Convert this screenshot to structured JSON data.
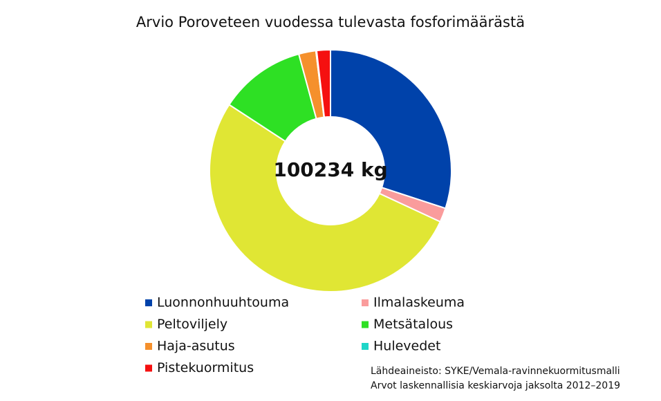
{
  "chart_data": {
    "type": "donut",
    "title": "Arvio Poroveteen vuodessa tulevasta fosforimäärästä",
    "center_label": "100234 kg",
    "categories": [
      "Luonnonhuuhtouma",
      "Ilmalaskeuma",
      "Peltoviljely",
      "Metsätalous",
      "Haja-asutus",
      "Hulevedet",
      "Pistekuormitus"
    ],
    "values": [
      30100,
      1900,
      52400,
      11600,
      2300,
      100,
      1834
    ],
    "colors": [
      "#0042aa",
      "#fa9c9c",
      "#e0e634",
      "#2ee024",
      "#f5902c",
      "#1ed6c8",
      "#f51010"
    ],
    "source_lines": [
      "Lähdeaineisto: SYKE/Vemala-ravinnekuormitusmalli",
      "Arvot laskennallisia keskiarvoja jaksolta 2012–2019"
    ]
  }
}
